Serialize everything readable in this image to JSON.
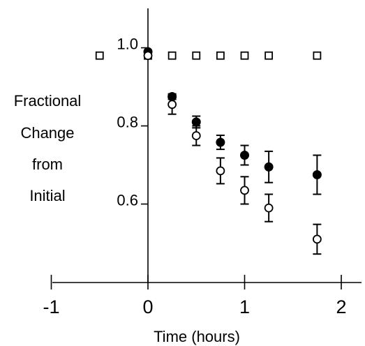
{
  "chart_data": {
    "type": "scatter",
    "xlabel": "Time (hours)",
    "ylabel_lines": [
      "Fractional",
      "Change",
      "from",
      "Initial"
    ],
    "x_ticks": [
      "-1",
      "0",
      "1",
      "2"
    ],
    "x_tick_values": [
      -1,
      0,
      1,
      2
    ],
    "y_ticks": [
      "1.0",
      "0.8",
      "0.6"
    ],
    "y_tick_values": [
      1.0,
      0.8,
      0.6
    ],
    "xlim": [
      -1,
      2
    ],
    "ylim": [
      0.4,
      1.05
    ],
    "grid": false,
    "series": [
      {
        "marker": "open-square",
        "x": [
          -0.5,
          0,
          0.25,
          0.5,
          0.75,
          1.0,
          1.25,
          1.75
        ],
        "y": [
          0.98,
          0.98,
          0.98,
          0.98,
          0.98,
          0.98,
          0.98,
          0.98
        ],
        "err": [
          0,
          0,
          0,
          0,
          0,
          0,
          0,
          0
        ]
      },
      {
        "marker": "filled-circle",
        "x": [
          0,
          0.25,
          0.5,
          0.75,
          1.0,
          1.25,
          1.75
        ],
        "y": [
          0.99,
          0.875,
          0.81,
          0.758,
          0.725,
          0.695,
          0.675
        ],
        "err": [
          0,
          0.007,
          0.015,
          0.018,
          0.025,
          0.04,
          0.05
        ]
      },
      {
        "marker": "open-circle",
        "x": [
          0,
          0.25,
          0.5,
          0.75,
          1.0,
          1.25,
          1.75
        ],
        "y": [
          0.98,
          0.855,
          0.775,
          0.685,
          0.635,
          0.59,
          0.51
        ],
        "err": [
          0,
          0.025,
          0.025,
          0.033,
          0.035,
          0.035,
          0.038
        ]
      }
    ]
  }
}
